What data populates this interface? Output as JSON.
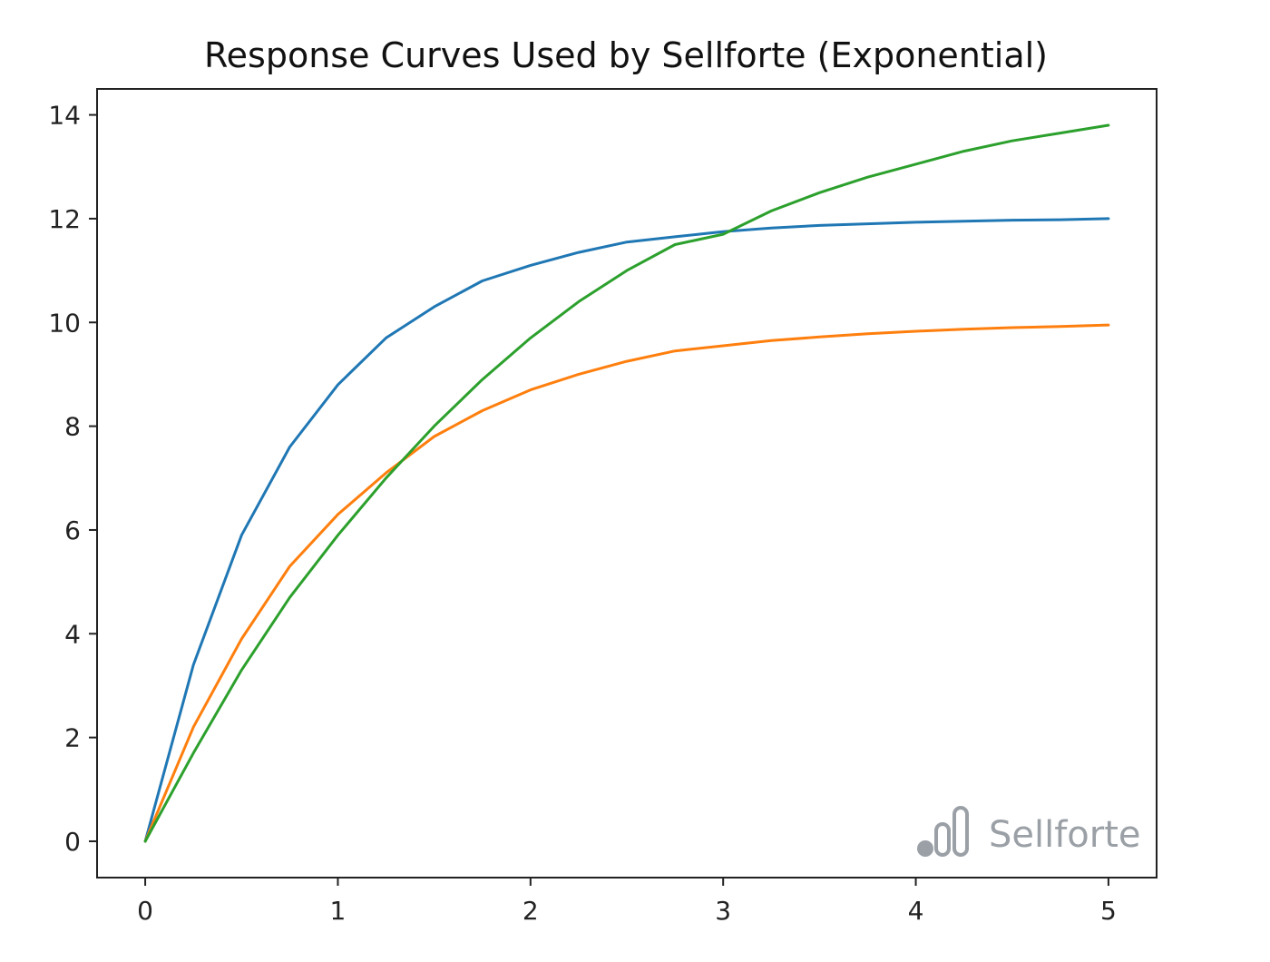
{
  "chart_data": {
    "type": "line",
    "title": "Response Curves Used by Sellforte (Exponential)",
    "xlabel": "",
    "ylabel": "",
    "xlim": [
      -0.25,
      5.25
    ],
    "ylim": [
      -0.7,
      14.5
    ],
    "x_ticks": [
      0,
      1,
      2,
      3,
      4,
      5
    ],
    "y_ticks": [
      0,
      2,
      4,
      6,
      8,
      10,
      12,
      14
    ],
    "grid": false,
    "series": [
      {
        "color": "#1f77b4",
        "x": [
          0,
          0.25,
          0.5,
          0.75,
          1,
          1.25,
          1.5,
          1.75,
          2,
          2.25,
          2.5,
          2.75,
          3,
          3.25,
          3.5,
          3.75,
          4,
          4.25,
          4.5,
          4.75,
          5
        ],
        "y": [
          0,
          3.4,
          5.9,
          7.6,
          8.8,
          9.7,
          10.3,
          10.8,
          11.1,
          11.35,
          11.55,
          11.65,
          11.75,
          11.82,
          11.87,
          11.9,
          11.93,
          11.95,
          11.97,
          11.98,
          12.0
        ]
      },
      {
        "color": "#ff7f0e",
        "x": [
          0,
          0.25,
          0.5,
          0.75,
          1,
          1.25,
          1.5,
          1.75,
          2,
          2.25,
          2.5,
          2.75,
          3,
          3.25,
          3.5,
          3.75,
          4,
          4.25,
          4.5,
          4.75,
          5
        ],
        "y": [
          0,
          2.2,
          3.9,
          5.3,
          6.3,
          7.1,
          7.8,
          8.3,
          8.7,
          9.0,
          9.25,
          9.45,
          9.55,
          9.65,
          9.72,
          9.78,
          9.83,
          9.87,
          9.9,
          9.92,
          9.95
        ]
      },
      {
        "color": "#2ca02c",
        "x": [
          0,
          0.25,
          0.5,
          0.75,
          1,
          1.25,
          1.5,
          1.75,
          2,
          2.25,
          2.5,
          2.75,
          3,
          3.25,
          3.5,
          3.75,
          4,
          4.25,
          4.5,
          4.75,
          5
        ],
        "y": [
          0,
          1.7,
          3.3,
          4.7,
          5.9,
          7.0,
          8.0,
          8.9,
          9.7,
          10.4,
          11.0,
          11.5,
          11.7,
          12.15,
          12.5,
          12.8,
          13.05,
          13.3,
          13.5,
          13.65,
          13.8
        ]
      }
    ]
  },
  "watermark": {
    "text": "Sellforte",
    "icon": "sellforte-logo-icon",
    "color": "#9aa0a6"
  }
}
